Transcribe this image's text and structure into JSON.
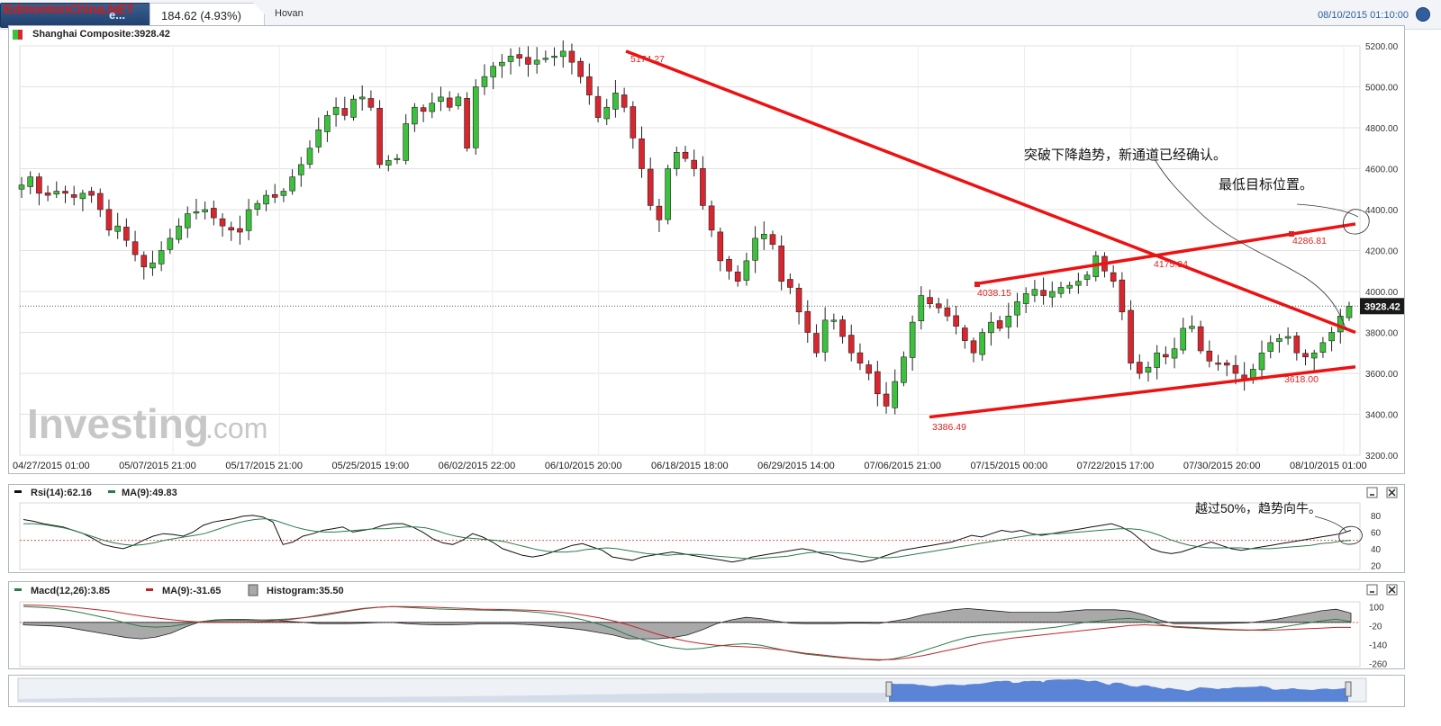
{
  "topbar": {
    "brand": "EdmontonChina.NET",
    "symbol_tab": "e...",
    "change": "184.62 (4.93%)",
    "user": "Hovan",
    "datetime": "08/10/2015 01:10:00"
  },
  "main_chart": {
    "title": "Shanghai Composite:3928.42",
    "last_price": "3928.42",
    "watermark": "Investing",
    "watermark_suffix": ".com",
    "annotations": [
      {
        "text": "5174.27"
      },
      {
        "text": "4038.15"
      },
      {
        "text": "4175.34"
      },
      {
        "text": "4286.81"
      },
      {
        "text": "3618.00"
      },
      {
        "text": "3386.49"
      }
    ],
    "notes": [
      "突破下降趋势，新通道已经确认。",
      "最低目标位置。"
    ]
  },
  "rsi_panel": {
    "legend_rsi": "Rsi(14):62.16",
    "legend_ma": "MA(9):49.83",
    "note": "越过50%，趋势向牛。"
  },
  "macd_panel": {
    "legend_macd": "Macd(12,26):3.85",
    "legend_ma": "MA(9):-31.65",
    "legend_hist": "Histogram:35.50"
  },
  "colors": {
    "up": "#3cc13c",
    "down": "#d9262e",
    "trendline": "#ee1111",
    "rsi": "#111111",
    "rsi_ma": "#2a7a4a",
    "macd": "#2a7a4a",
    "macd_ma": "#c0242a"
  },
  "chart_data": [
    {
      "type": "candlestick",
      "ylim": [
        3200,
        5200
      ],
      "yticks": [
        "3200.00",
        "3400.00",
        "3600.00",
        "3800.00",
        "4000.00",
        "4200.00",
        "4400.00",
        "4600.00",
        "4800.00",
        "5000.00",
        "5200.00"
      ],
      "xticks": [
        "04/27/2015 01:00",
        "05/07/2015 21:00",
        "05/17/2015 21:00",
        "05/25/2015 19:00",
        "06/02/2015 22:00",
        "06/10/2015 20:00",
        "06/18/2015 18:00",
        "06/29/2015 14:00",
        "07/06/2015 21:00",
        "07/15/2015 00:00",
        "07/22/2015 17:00",
        "07/30/2015 20:00",
        "08/10/2015 01:00"
      ],
      "close_path": [
        4520,
        4560,
        4480,
        4470,
        4490,
        4480,
        4460,
        4480,
        4470,
        4400,
        4300,
        4320,
        4250,
        4180,
        4120,
        4140,
        4200,
        4260,
        4320,
        4380,
        4390,
        4400,
        4360,
        4320,
        4300,
        4290,
        4400,
        4430,
        4470,
        4460,
        4490,
        4560,
        4620,
        4700,
        4790,
        4860,
        4900,
        4860,
        4940,
        4950,
        4900,
        4620,
        4640,
        4650,
        4820,
        4900,
        4880,
        4920,
        4950,
        4900,
        4950,
        4700,
        5000,
        5050,
        5100,
        5120,
        5150,
        5140,
        5110,
        5130,
        5140,
        5150,
        5174,
        5120,
        5050,
        4960,
        4850,
        4900,
        4970,
        4900,
        4750,
        4600,
        4420,
        4350,
        4600,
        4680,
        4650,
        4600,
        4420,
        4300,
        4150,
        4100,
        4050,
        4150,
        4260,
        4280,
        4230,
        4050,
        4020,
        3900,
        3800,
        3700,
        3860,
        3860,
        3780,
        3700,
        3650,
        3600,
        3500,
        3440,
        3560,
        3680,
        3850,
        3980,
        3940,
        3920,
        3880,
        3830,
        3760,
        3700,
        3800,
        3850,
        3820,
        3880,
        3950,
        3990,
        4010,
        3980,
        4000,
        4020,
        4030,
        4050,
        4080,
        4175,
        4100,
        4050,
        3900,
        3650,
        3600,
        3630,
        3700,
        3680,
        3720,
        3820,
        3830,
        3710,
        3660,
        3650,
        3640,
        3600,
        3570,
        3620,
        3700,
        3750,
        3770,
        3780,
        3700,
        3680,
        3700,
        3750,
        3800,
        3880,
        3928.42
      ],
      "trendlines": [
        {
          "from": {
            "x": "06/12/2015",
            "y": 5174.27
          },
          "to": {
            "x": "08/10/2015",
            "y": 3800
          }
        },
        {
          "from": {
            "x": "07/09/2015",
            "y": 4038.15
          },
          "to": {
            "x": "08/10/2015",
            "y": 4330
          }
        },
        {
          "from": {
            "x": "07/08/2015",
            "y": 3386.49
          },
          "to": {
            "x": "08/10/2015",
            "y": 3632
          }
        }
      ],
      "last": 3928.42
    },
    {
      "type": "line",
      "title": "Rsi(14)",
      "yticks": [
        20,
        40,
        60,
        80
      ],
      "ylim": [
        15,
        95
      ],
      "reference": 50,
      "series": [
        {
          "name": "Rsi(14)",
          "values": [
            75,
            73,
            70,
            68,
            66,
            62,
            58,
            52,
            45,
            42,
            40,
            44,
            50,
            55,
            58,
            57,
            55,
            60,
            68,
            72,
            74,
            76,
            79,
            80,
            78,
            72,
            45,
            48,
            55,
            58,
            62,
            64,
            66,
            60,
            62,
            64,
            68,
            70,
            70,
            66,
            60,
            52,
            47,
            45,
            50,
            58,
            54,
            48,
            40,
            36,
            32,
            30,
            32,
            36,
            40,
            44,
            46,
            42,
            38,
            30,
            28,
            26,
            30,
            32,
            34,
            36,
            34,
            32,
            30,
            28,
            26,
            24,
            26,
            30,
            32,
            34,
            36,
            38,
            40,
            38,
            34,
            32,
            28,
            26,
            24,
            26,
            30,
            34,
            38,
            40,
            42,
            44,
            46,
            48,
            52,
            56,
            54,
            58,
            62,
            60,
            62,
            58,
            56,
            58,
            60,
            62,
            64,
            66,
            68,
            70,
            66,
            60,
            50,
            40,
            36,
            34,
            36,
            40,
            44,
            48,
            44,
            40,
            38,
            40,
            42,
            44,
            46,
            48,
            50,
            52,
            54,
            56,
            58,
            62
          ]
        },
        {
          "name": "MA(9)",
          "values": [
            70,
            70,
            69,
            67,
            65,
            62,
            58,
            54,
            50,
            47,
            45,
            44,
            45,
            47,
            50,
            52,
            54,
            56,
            58,
            62,
            66,
            70,
            73,
            75,
            76,
            74,
            70,
            66,
            63,
            61,
            60,
            60,
            61,
            62,
            63,
            64,
            64,
            65,
            66,
            66,
            65,
            62,
            58,
            55,
            53,
            52,
            51,
            50,
            48,
            45,
            42,
            39,
            37,
            36,
            36,
            37,
            39,
            40,
            41,
            40,
            38,
            36,
            34,
            33,
            32,
            33,
            33,
            33,
            32,
            31,
            30,
            29,
            28,
            28,
            29,
            30,
            31,
            33,
            35,
            36,
            36,
            35,
            34,
            32,
            30,
            29,
            29,
            30,
            32,
            34,
            36,
            38,
            40,
            42,
            44,
            46,
            48,
            50,
            52,
            54,
            56,
            57,
            58,
            58,
            59,
            60,
            61,
            62,
            63,
            64,
            64,
            63,
            60,
            56,
            51,
            47,
            44,
            42,
            41,
            41,
            41,
            41,
            40,
            40,
            40,
            41,
            42,
            43,
            44,
            46,
            47,
            49,
            50
          ]
        }
      ]
    },
    {
      "type": "line",
      "title": "Macd(12,26)",
      "yticks": [
        100,
        -20,
        -140,
        -260
      ],
      "ylim": [
        -280,
        130
      ],
      "reference": 0,
      "series": [
        {
          "name": "Macd(12,26)",
          "values": [
            100,
            96,
            90,
            78,
            60,
            40,
            20,
            -5,
            -25,
            -30,
            -25,
            -10,
            5,
            10,
            12,
            14,
            15,
            18,
            22,
            30,
            40,
            55,
            70,
            85,
            95,
            100,
            95,
            90,
            85,
            82,
            80,
            78,
            76,
            74,
            70,
            62,
            50,
            35,
            15,
            -10,
            -40,
            -80,
            -110,
            -140,
            -160,
            -170,
            -165,
            -150,
            -140,
            -135,
            -145,
            -165,
            -185,
            -200,
            -210,
            -220,
            -228,
            -235,
            -240,
            -230,
            -210,
            -180,
            -150,
            -120,
            -95,
            -80,
            -70,
            -60,
            -50,
            -40,
            -30,
            -15,
            0,
            10,
            20,
            25,
            15,
            -10,
            -30,
            -35,
            -40,
            -45,
            -48,
            -50,
            -45,
            -35,
            -20,
            -5,
            10,
            20,
            5
          ]
        },
        {
          "name": "MA(9)",
          "values": [
            110,
            108,
            104,
            98,
            90,
            80,
            70,
            55,
            40,
            28,
            18,
            8,
            2,
            0,
            0,
            2,
            5,
            10,
            18,
            30,
            45,
            60,
            75,
            88,
            96,
            100,
            100,
            98,
            95,
            92,
            88,
            84,
            82,
            80,
            78,
            74,
            68,
            58,
            45,
            30,
            10,
            -15,
            -45,
            -75,
            -100,
            -120,
            -135,
            -145,
            -150,
            -155,
            -160,
            -170,
            -182,
            -195,
            -205,
            -215,
            -225,
            -232,
            -236,
            -235,
            -225,
            -210,
            -190,
            -170,
            -150,
            -130,
            -115,
            -100,
            -90,
            -80,
            -70,
            -60,
            -50,
            -40,
            -30,
            -20,
            -15,
            -20,
            -25,
            -30,
            -35,
            -40,
            -45,
            -48,
            -50,
            -48,
            -44,
            -40,
            -36,
            -32,
            -31.65
          ]
        }
      ]
    }
  ]
}
